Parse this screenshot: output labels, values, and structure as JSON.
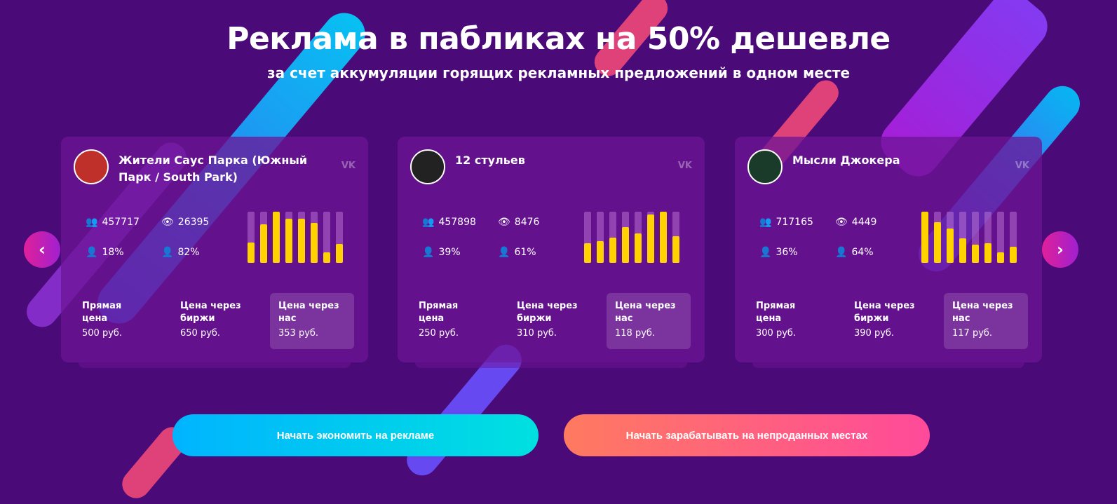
{
  "header": {
    "title": "Реклама в пабликах на 50% дешевле",
    "subtitle": "за счет аккумуляции горящих рекламных предложений в одном месте"
  },
  "colors": {
    "bar_fill": "#ffd200",
    "background": "#4a0a78"
  },
  "cards": [
    {
      "name": "Жители Саус Парка (Южный Парк / South Park)",
      "network": "vk",
      "subscribers": "457717",
      "views": "26395",
      "female": "18%",
      "male": "82%",
      "bars": [
        0.4,
        0.75,
        1,
        0.87,
        0.87,
        0.78,
        0.2,
        0.37
      ],
      "prices": [
        {
          "label": "Прямая цена",
          "value": "500 руб."
        },
        {
          "label": "Цена через биржи",
          "value": "650 руб."
        },
        {
          "label": "Цена через нас",
          "value": "353 руб."
        }
      ],
      "avatar_color": "#c0302a"
    },
    {
      "name": "12 стульев",
      "network": "vk",
      "subscribers": "457898",
      "views": "8476",
      "female": "39%",
      "male": "61%",
      "bars": [
        0.38,
        0.42,
        0.5,
        0.7,
        0.58,
        0.95,
        1,
        0.52
      ],
      "prices": [
        {
          "label": "Прямая цена",
          "value": "250 руб."
        },
        {
          "label": "Цена через биржи",
          "value": "310 руб."
        },
        {
          "label": "Цена через нас",
          "value": "118 руб."
        }
      ],
      "avatar_color": "#222222"
    },
    {
      "name": "Мысли Джокера",
      "network": "vk",
      "subscribers": "717165",
      "views": "4449",
      "female": "36%",
      "male": "64%",
      "bars": [
        1,
        0.8,
        0.67,
        0.48,
        0.35,
        0.39,
        0.2,
        0.32
      ],
      "prices": [
        {
          "label": "Прямая цена",
          "value": "300 руб."
        },
        {
          "label": "Цена через биржи",
          "value": "390 руб."
        },
        {
          "label": "Цена через нас",
          "value": "117 руб."
        }
      ],
      "avatar_color": "#1a3a2a"
    }
  ],
  "nav": {
    "prev": "‹",
    "next": "›"
  },
  "buttons": {
    "save": "Начать экономить на рекламе",
    "earn": "Начать зарабатывать на непроданных местах"
  }
}
